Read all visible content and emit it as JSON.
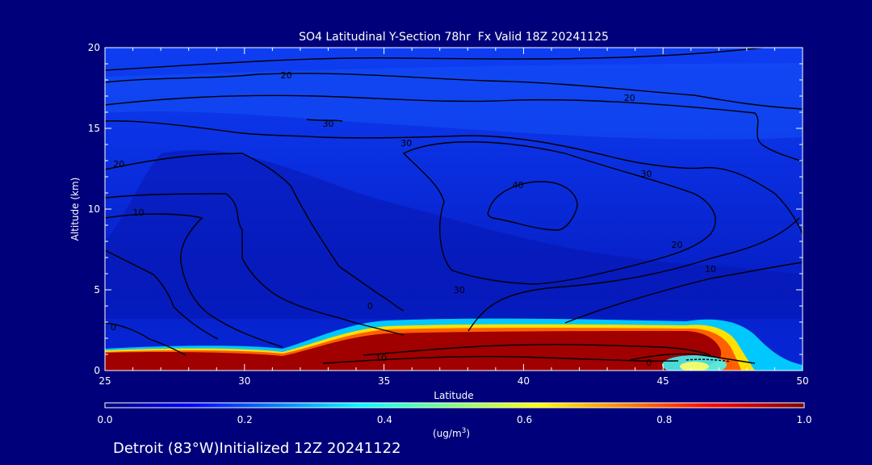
{
  "chart_data": {
    "type": "heatmap",
    "title": "SO4 Latitudinal Y-Section 78hr  Fx Valid 18Z 20241125",
    "xlabel": "Latitude",
    "ylabel": "Altitude (km)",
    "xlim": [
      25,
      50
    ],
    "ylim": [
      0,
      20
    ],
    "x_ticks": [
      25,
      30,
      35,
      40,
      45,
      50
    ],
    "y_ticks": [
      0,
      5,
      10,
      15,
      20
    ],
    "colorbar": {
      "ticks": [
        "0.0",
        "0.2",
        "0.4",
        "0.6",
        "0.8",
        "1.0"
      ],
      "unit_label": "(ug/m",
      "unit_sup": "3",
      "unit_close": ")",
      "range": [
        0.0,
        1.0
      ]
    },
    "footer": "Detroit (83°W)Initialized 12Z 20241122",
    "concentration_profile": {
      "description_levels": "SO4 concentration shown as color; high values near surface",
      "surface_layer": [
        {
          "lat": 25,
          "top_km": 1.0,
          "value": 1.0
        },
        {
          "lat": 30,
          "top_km": 0.8,
          "value": 1.0
        },
        {
          "lat": 33,
          "top_km": 0.7,
          "value": 0.95
        },
        {
          "lat": 35,
          "top_km": 1.9,
          "value": 1.0
        },
        {
          "lat": 40,
          "top_km": 2.0,
          "value": 1.0
        },
        {
          "lat": 45,
          "top_km": 2.0,
          "value": 1.0
        },
        {
          "lat": 47,
          "top_km": 1.6,
          "value": 1.0
        },
        {
          "lat": 48.5,
          "top_km": 0.5,
          "value": 0.5
        }
      ]
    },
    "contours": [
      {
        "label": "20",
        "lat": 31.5,
        "alt": 18.3
      },
      {
        "label": "20",
        "lat": 43.8,
        "alt": 16.9
      },
      {
        "label": "30",
        "lat": 33.0,
        "alt": 15.3
      },
      {
        "label": "30",
        "lat": 35.8,
        "alt": 14.1
      },
      {
        "label": "30",
        "lat": 44.4,
        "alt": 12.2
      },
      {
        "label": "20",
        "lat": 25.5,
        "alt": 12.8
      },
      {
        "label": "10",
        "lat": 26.2,
        "alt": 9.8
      },
      {
        "label": "40",
        "lat": 39.8,
        "alt": 11.5
      },
      {
        "label": "20",
        "lat": 45.5,
        "alt": 7.8
      },
      {
        "label": "10",
        "lat": 46.7,
        "alt": 6.3
      },
      {
        "label": "30",
        "lat": 37.7,
        "alt": 5.0
      },
      {
        "label": "0",
        "lat": 34.5,
        "alt": 4.0
      },
      {
        "label": "0",
        "lat": 25.3,
        "alt": 2.7
      },
      {
        "label": "10",
        "lat": 34.9,
        "alt": 0.8
      },
      {
        "label": "0",
        "lat": 44.5,
        "alt": 0.5
      }
    ]
  }
}
